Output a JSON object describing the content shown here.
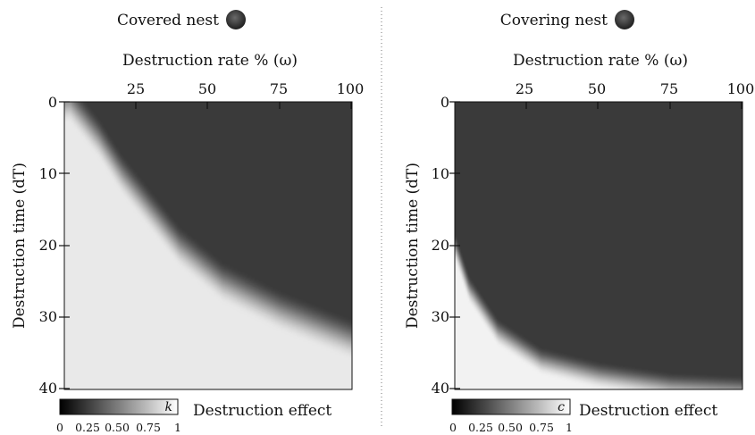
{
  "chart_data": [
    {
      "type": "heatmap",
      "title": "Covered nest",
      "xlabel": "Destruction rate % (ω)",
      "ylabel": "Destruction time (dT)",
      "x_ticks": [
        "25",
        "50",
        "75",
        "100"
      ],
      "y_ticks": [
        "0",
        "10",
        "20",
        "30",
        "40"
      ],
      "xlim": [
        0,
        100
      ],
      "ylim": [
        0,
        40
      ],
      "x_axis_position": "top",
      "colorbar": {
        "variable": "k",
        "label": "Destruction effect",
        "ticks": [
          "0",
          "0.25",
          "0.50",
          "0.75",
          "1"
        ],
        "range": [
          0,
          1
        ]
      },
      "colors": {
        "low": "#3a3a3a",
        "high": "#e9e9e9"
      },
      "description": "k is near 1 (light) for short destruction times at low rates and for long destruction times; drops to near 0 (dark) above the boundary curve",
      "boundary_curve": [
        [
          2,
          0
        ],
        [
          12,
          5
        ],
        [
          20,
          10
        ],
        [
          30,
          15
        ],
        [
          40,
          20
        ],
        [
          55,
          25
        ],
        [
          75,
          29
        ],
        [
          100,
          33
        ]
      ],
      "transition_width_dT": 6
    },
    {
      "type": "heatmap",
      "title": "Covering nest",
      "xlabel": "Destruction rate % (ω)",
      "ylabel": "Destruction time (dT)",
      "x_ticks": [
        "25",
        "50",
        "75",
        "100"
      ],
      "y_ticks": [
        "0",
        "10",
        "20",
        "30",
        "40"
      ],
      "xlim": [
        0,
        100
      ],
      "ylim": [
        0,
        40
      ],
      "x_axis_position": "top",
      "colorbar": {
        "variable": "c",
        "label": "Destruction effect",
        "ticks": [
          "0",
          "0.25",
          "0.50",
          "0.75",
          "1"
        ],
        "range": [
          0,
          1
        ]
      },
      "colors": {
        "low": "#3a3a3a",
        "high": "#f2f2f2"
      },
      "description": "c is low (dark) over most of the domain; rises toward 1 (light) only in the bottom-left corner at low rates and long destruction times",
      "boundary_curve": [
        [
          0,
          20
        ],
        [
          5,
          26
        ],
        [
          15,
          32
        ],
        [
          30,
          36
        ],
        [
          50,
          38
        ],
        [
          75,
          39.5
        ],
        [
          100,
          40
        ]
      ],
      "transition_width_dT": 4
    }
  ]
}
